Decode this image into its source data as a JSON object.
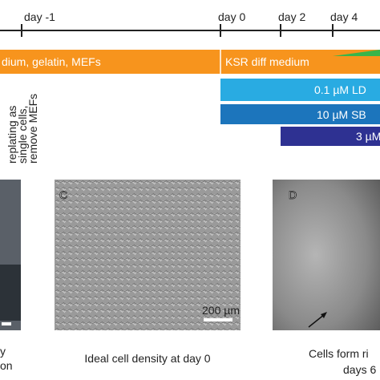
{
  "timeline": {
    "days": [
      "day -1",
      "day 0",
      "day 2",
      "day 4"
    ]
  },
  "bars": {
    "medium_a": "dium, gelatin, MEFs",
    "medium_b": "KSR diff medium",
    "ldn": "0.1 µM LD",
    "sb": "10 µM SB",
    "third": "3 µM"
  },
  "note": [
    "replating as",
    "single cells,",
    "remove MEFs"
  ],
  "panels": {
    "c_label": "C",
    "d_label": "D",
    "scale_bar": "200 µm"
  },
  "captions": {
    "left": [
      "y",
      "on"
    ],
    "c": "Ideal cell density at day 0",
    "d": [
      "Cells form ri",
      "days 6"
    ]
  }
}
